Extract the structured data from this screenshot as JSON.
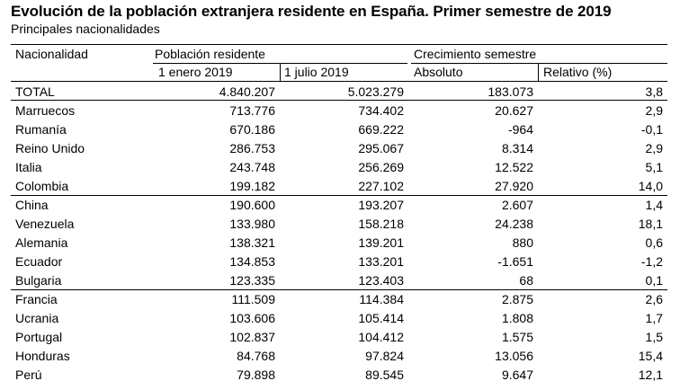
{
  "title": "Evolución de la población extranjera residente en España. Primer semestre de 2019",
  "subtitle": "Principales nacionalidades",
  "headers": {
    "nationality": "Nacionalidad",
    "population_group": "Población residente",
    "jan": "1 enero 2019",
    "jul": "1 julio 2019",
    "growth_group": "Crecimiento semestre",
    "absolute": "Absoluto",
    "relative": "Relativo (%)"
  },
  "rows": [
    {
      "name": "TOTAL",
      "jan": "4.840.207",
      "jul": "5.023.279",
      "abs": "183.073",
      "rel": "3,8"
    },
    {
      "name": "Marruecos",
      "jan": "713.776",
      "jul": "734.402",
      "abs": "20.627",
      "rel": "2,9"
    },
    {
      "name": "Rumanía",
      "jan": "670.186",
      "jul": "669.222",
      "abs": "-964",
      "rel": "-0,1"
    },
    {
      "name": "Reino Unido",
      "jan": "286.753",
      "jul": "295.067",
      "abs": "8.314",
      "rel": "2,9"
    },
    {
      "name": "Italia",
      "jan": "243.748",
      "jul": "256.269",
      "abs": "12.522",
      "rel": "5,1"
    },
    {
      "name": "Colombia",
      "jan": "199.182",
      "jul": "227.102",
      "abs": "27.920",
      "rel": "14,0"
    },
    {
      "name": "China",
      "jan": "190.600",
      "jul": "193.207",
      "abs": "2.607",
      "rel": "1,4"
    },
    {
      "name": "Venezuela",
      "jan": "133.980",
      "jul": "158.218",
      "abs": "24.238",
      "rel": "18,1"
    },
    {
      "name": "Alemania",
      "jan": "138.321",
      "jul": "139.201",
      "abs": "880",
      "rel": "0,6"
    },
    {
      "name": "Ecuador",
      "jan": "134.853",
      "jul": "133.201",
      "abs": "-1.651",
      "rel": "-1,2"
    },
    {
      "name": "Bulgaria",
      "jan": "123.335",
      "jul": "123.403",
      "abs": "68",
      "rel": "0,1"
    },
    {
      "name": "Francia",
      "jan": "111.509",
      "jul": "114.384",
      "abs": "2.875",
      "rel": "2,6"
    },
    {
      "name": "Ucrania",
      "jan": "103.606",
      "jul": "105.414",
      "abs": "1.808",
      "rel": "1,7"
    },
    {
      "name": "Portugal",
      "jan": "102.837",
      "jul": "104.412",
      "abs": "1.575",
      "rel": "1,5"
    },
    {
      "name": "Honduras",
      "jan": "84.768",
      "jul": "97.824",
      "abs": "13.056",
      "rel": "15,4"
    },
    {
      "name": "Perú",
      "jan": "79.898",
      "jul": "89.545",
      "abs": "9.647",
      "rel": "12,1"
    }
  ]
}
